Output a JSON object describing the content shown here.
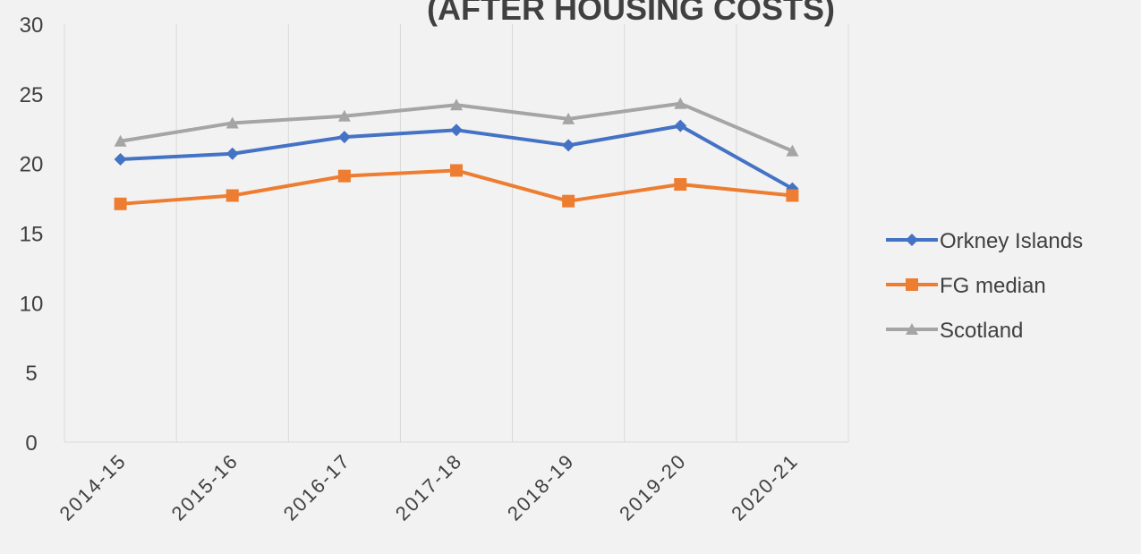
{
  "chart_data": {
    "type": "line",
    "title": "(AFTER HOUSING COSTS)",
    "categories": [
      "2014-15",
      "2015-16",
      "2016-17",
      "2017-18",
      "2018-19",
      "2019-20",
      "2020-21"
    ],
    "series": [
      {
        "name": "Orkney Islands",
        "color": "#4472c4",
        "marker": "diamond",
        "values": [
          20.3,
          20.7,
          21.9,
          22.4,
          21.3,
          22.7,
          18.2
        ]
      },
      {
        "name": "FG median",
        "color": "#ed7d31",
        "marker": "square",
        "values": [
          17.1,
          17.7,
          19.1,
          19.5,
          17.3,
          18.5,
          17.7
        ]
      },
      {
        "name": "Scotland",
        "color": "#a5a5a5",
        "marker": "triangle",
        "values": [
          21.6,
          22.9,
          23.4,
          24.2,
          23.2,
          24.3,
          20.9
        ]
      }
    ],
    "ylim": [
      0,
      30
    ],
    "yticks": [
      0,
      5,
      10,
      15,
      20,
      25,
      30
    ],
    "grid": true,
    "legend": "right"
  }
}
